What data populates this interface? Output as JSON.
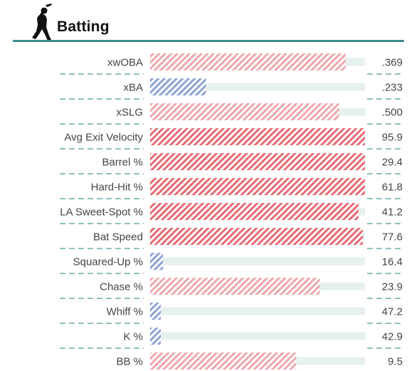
{
  "title": "Batting",
  "icon": "baseball-batter-icon",
  "colors": {
    "accent": "#3d8a8a",
    "divider": "#4a9a9a",
    "track": "#e6f0ee",
    "red_strong": "#e66b73",
    "red_light": "#efa7ab",
    "blue": "#8da3d6"
  },
  "chart_data": {
    "type": "bar",
    "orientation": "horizontal",
    "title": "Batting",
    "categories": [
      "xwOBA",
      "xBA",
      "xSLG",
      "Avg Exit Velocity",
      "Barrel %",
      "Hard-Hit %",
      "LA Sweet-Spot %",
      "Bat Speed",
      "Squared-Up %",
      "Chase %",
      "Whiff %",
      "K %",
      "BB %"
    ],
    "value_labels": [
      ".369",
      ".233",
      ".500",
      "95.9",
      "29.4",
      "61.8",
      "41.2",
      "77.6",
      "16.4",
      "23.9",
      "47.2",
      "42.9",
      "9.5"
    ],
    "percentiles": [
      91,
      26,
      88,
      100,
      100,
      100,
      97,
      99,
      6,
      79,
      5,
      5,
      68
    ],
    "bar_colors": [
      "red_light",
      "blue",
      "red_light",
      "red_strong",
      "red_strong",
      "red_strong",
      "red_strong",
      "red_strong",
      "blue",
      "red_light",
      "blue",
      "blue",
      "red_light"
    ],
    "xlim": [
      0,
      100
    ]
  }
}
